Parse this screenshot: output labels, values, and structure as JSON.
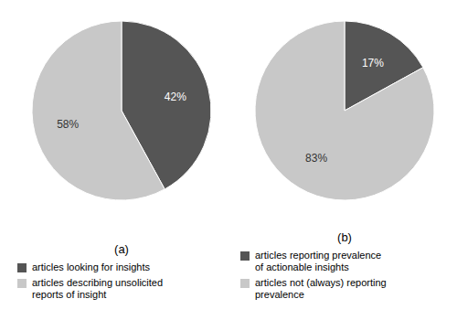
{
  "chart_data": [
    {
      "type": "pie",
      "title": "(a)",
      "categories": [
        "articles looking for insights",
        "articles describing unsolicited\nreports of insight"
      ],
      "values": [
        42,
        58
      ],
      "value_labels": [
        "42%",
        "58%"
      ],
      "colors": [
        "#555555",
        "#c8c8c8"
      ],
      "data_labels": true,
      "legend": "bottom"
    },
    {
      "type": "pie",
      "title": "(b)",
      "categories": [
        "articles reporting prevalence\nof actionable insights",
        "articles not (always) reporting\nprevalence"
      ],
      "values": [
        17,
        83
      ],
      "value_labels": [
        "17%",
        "83%"
      ],
      "colors": [
        "#555555",
        "#c8c8c8"
      ],
      "data_labels": true,
      "legend": "bottom"
    }
  ]
}
